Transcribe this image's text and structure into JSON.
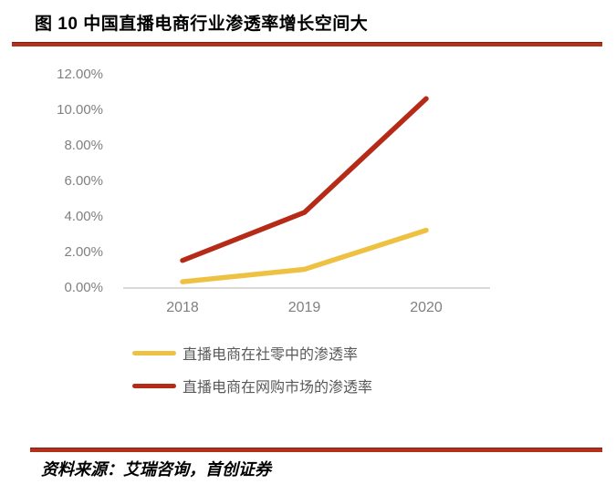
{
  "header": {
    "title": "图 10 中国直播电商行业渗透率增长空间大"
  },
  "footer": {
    "source": "资料来源：艾瑞咨询，首创证券"
  },
  "colors": {
    "rule_red": "#B5301B",
    "rule_red_dark": "#7E2012",
    "axis_line": "#D9D9D9",
    "tick_text": "#808080",
    "legend_text": "#595959",
    "title_text": "#000000"
  },
  "chart_data": {
    "type": "line",
    "title": "",
    "xlabel": "",
    "ylabel": "",
    "categories": [
      "2018",
      "2019",
      "2020"
    ],
    "series": [
      {
        "name": "直播电商在社零中的渗透率",
        "values": [
          0.3,
          1.0,
          3.2
        ],
        "color": "#EFC143"
      },
      {
        "name": "直播电商在网购市场的渗透率",
        "values": [
          1.5,
          4.2,
          10.6
        ],
        "color": "#B52B17"
      }
    ],
    "ylim": [
      0,
      12
    ],
    "ytick_step": 2,
    "ytick_labels": [
      "0.00%",
      "2.00%",
      "4.00%",
      "6.00%",
      "8.00%",
      "10.00%",
      "12.00%"
    ],
    "grid": false,
    "legend_position": "bottom-left"
  }
}
